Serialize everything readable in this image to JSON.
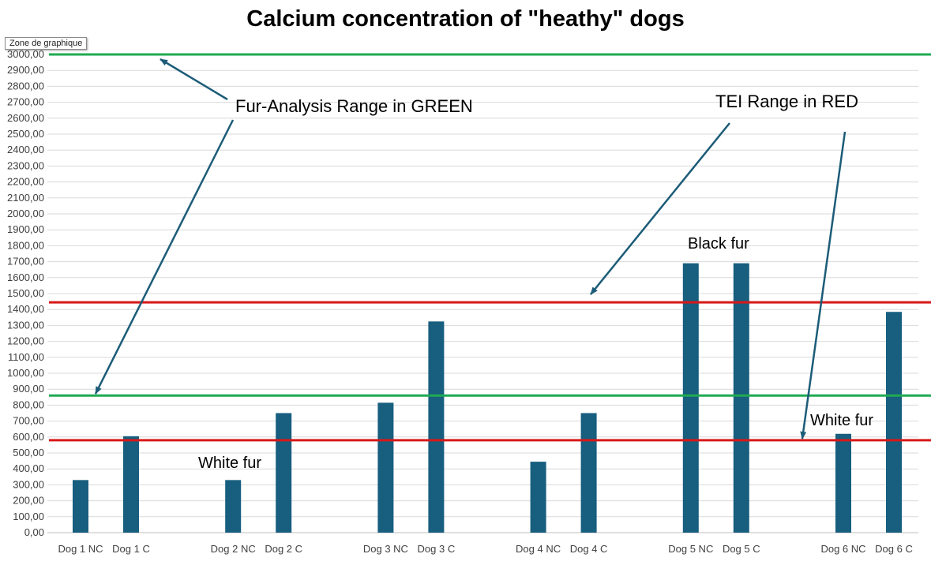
{
  "selection_badge": "Zone de graphique",
  "chart_data": {
    "type": "bar",
    "title": "Calcium concentration of \"heathy\" dogs",
    "xlabel": "",
    "ylabel": "",
    "ylim": [
      0,
      3000
    ],
    "ytick_step": 100,
    "ytick_format": "fr-2-decimals",
    "grid": true,
    "legend": "none",
    "categories": [
      "Dog 1 NC",
      "Dog 1 C",
      "Dog 2  NC",
      "Dog 2  C",
      "Dog 3 NC",
      "Dog 3  C",
      "Dog 4 NC",
      "Dog 4  C",
      "Dog 5 NC",
      "Dog 5 C",
      "Dog 6 NC",
      "Dog 6  C"
    ],
    "series": [
      {
        "values": [
          330,
          605,
          330,
          750,
          815,
          1325,
          445,
          750,
          1690,
          1690,
          620,
          1385
        ]
      }
    ],
    "bar_color": "#175e7f",
    "reference_lines": [
      {
        "value": 3000,
        "color": "#1faa52"
      },
      {
        "value": 860,
        "color": "#1faa52"
      },
      {
        "value": 1445,
        "color": "#d71919"
      },
      {
        "value": 580,
        "color": "#d71919"
      }
    ],
    "annotations": {
      "fur_range": "Fur-Analysis Range in GREEN",
      "tei_range": "TEI Range in RED",
      "white_fur_1": "White fur",
      "black_fur": "Black fur",
      "white_fur_2": "White fur"
    },
    "arrow_color": "#1c5c78"
  }
}
